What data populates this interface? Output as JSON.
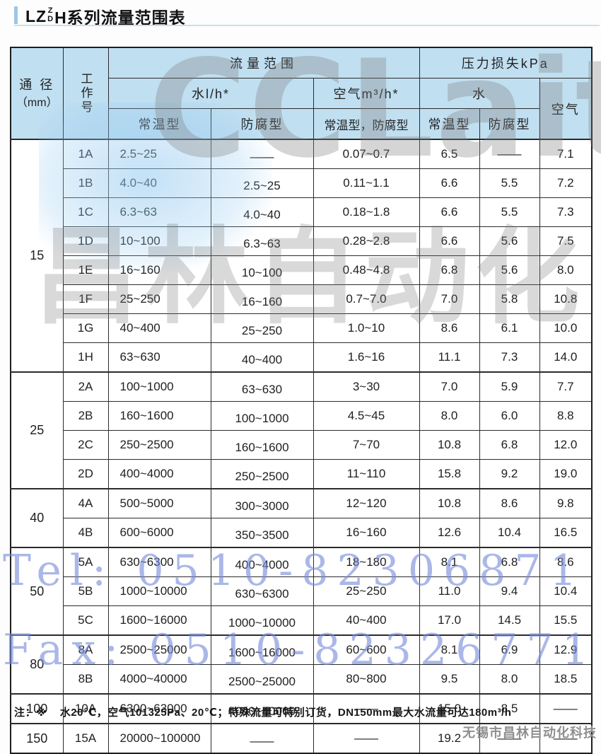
{
  "title": {
    "prefix": "LZ",
    "stack_top": "Z",
    "stack_bottom": "D",
    "suffix": "H系列流量范围表"
  },
  "header": {
    "diameter_line1": "通 径",
    "diameter_line2": "（mm）",
    "work_no": "工作号",
    "flow_range": "流量范围",
    "pressure_loss": "压力损失kPa",
    "water_unit": "水l/h*",
    "air_unit": "空气m³/h*",
    "water": "水",
    "air": "空气",
    "type_normal": "常温型",
    "type_anti": "防腐型",
    "type_both": "常温型，防腐型"
  },
  "groups": [
    {
      "diameter": "15",
      "rows": [
        {
          "code": "1A",
          "wn": "2.5~25",
          "wa": "——",
          "af": "0.07~0.7",
          "pwn": "6.5",
          "pwa": "——",
          "pa": "7.1"
        },
        {
          "code": "1B",
          "wn": "4.0~40",
          "wa": "2.5~25",
          "af": "0.11~1.1",
          "pwn": "6.6",
          "pwa": "5.5",
          "pa": "7.2"
        },
        {
          "code": "1C",
          "wn": "6.3~63",
          "wa": "4.0~40",
          "af": "0.18~1.8",
          "pwn": "6.6",
          "pwa": "5.5",
          "pa": "7.3"
        },
        {
          "code": "1D",
          "wn": "10~100",
          "wa": "6.3~63",
          "af": "0.28~2.8",
          "pwn": "6.6",
          "pwa": "5.6",
          "pa": "7.5"
        },
        {
          "code": "1E",
          "wn": "16~160",
          "wa": "10~100",
          "af": "0.48~4.8",
          "pwn": "6.8",
          "pwa": "5.6",
          "pa": "8.0"
        },
        {
          "code": "1F",
          "wn": "25~250",
          "wa": "16~160",
          "af": "0.7~7.0",
          "pwn": "7.0",
          "pwa": "5.8",
          "pa": "10.8"
        },
        {
          "code": "1G",
          "wn": "40~400",
          "wa": "25~250",
          "af": "1.0~10",
          "pwn": "8.6",
          "pwa": "6.1",
          "pa": "10.0"
        },
        {
          "code": "1H",
          "wn": "63~630",
          "wa": "40~400",
          "af": "1.6~16",
          "pwn": "11.1",
          "pwa": "7.3",
          "pa": "14.0"
        }
      ]
    },
    {
      "diameter": "25",
      "rows": [
        {
          "code": "2A",
          "wn": "100~1000",
          "wa": "63~630",
          "af": "3~30",
          "pwn": "7.0",
          "pwa": "5.9",
          "pa": "7.7"
        },
        {
          "code": "2B",
          "wn": "160~1600",
          "wa": "100~1000",
          "af": "4.5~45",
          "pwn": "8.0",
          "pwa": "6.0",
          "pa": "8.8"
        },
        {
          "code": "2C",
          "wn": "250~2500",
          "wa": "160~1600",
          "af": "7~70",
          "pwn": "10.8",
          "pwa": "6.8",
          "pa": "12.0"
        },
        {
          "code": "2D",
          "wn": "400~4000",
          "wa": "250~2500",
          "af": "11~110",
          "pwn": "15.8",
          "pwa": "9.2",
          "pa": "19.0"
        }
      ]
    },
    {
      "diameter": "40",
      "rows": [
        {
          "code": "4A",
          "wn": "500~5000",
          "wa": "300~3000",
          "af": "12~120",
          "pwn": "10.8",
          "pwa": "8.6",
          "pa": "9.8"
        },
        {
          "code": "4B",
          "wn": "600~6000",
          "wa": "350~3500",
          "af": "16~160",
          "pwn": "12.6",
          "pwa": "10.4",
          "pa": "16.5"
        }
      ]
    },
    {
      "diameter": "50",
      "rows": [
        {
          "code": "5A",
          "wn": "630~6300",
          "wa": "400~4000",
          "af": "18~180",
          "pwn": "8.1",
          "pwa": "6.8",
          "pa": "8.6"
        },
        {
          "code": "5B",
          "wn": "1000~10000",
          "wa": "630~6300",
          "af": "25~250",
          "pwn": "11.0",
          "pwa": "9.4",
          "pa": "10.4"
        },
        {
          "code": "5C",
          "wn": "1600~16000",
          "wa": "1000~10000",
          "af": "40~400",
          "pwn": "17.0",
          "pwa": "14.5",
          "pa": "15.5"
        }
      ]
    },
    {
      "diameter": "80",
      "rows": [
        {
          "code": "8A",
          "wn": "2500~25000",
          "wa": "1600~16000",
          "af": "60~600",
          "pwn": "8.1",
          "pwa": "6.9",
          "pa": "12.9"
        },
        {
          "code": "8B",
          "wn": "4000~40000",
          "wa": "2500~25000",
          "af": "80~800",
          "pwn": "9.5",
          "pwa": "8.0",
          "pa": "18.5"
        }
      ]
    },
    {
      "diameter": "100",
      "rows": [
        {
          "code": "10A",
          "wn": "6300~63000",
          "wa": "4000~40000",
          "af": "——",
          "pwn": "15.0",
          "pwa": "8.5",
          "pa": "——"
        }
      ]
    },
    {
      "diameter": "150",
      "rows": [
        {
          "code": "15A",
          "wn": "20000~100000",
          "wa": "——",
          "af": "——",
          "pwn": "19.2",
          "pwa": "——",
          "pa": "——"
        }
      ]
    }
  ],
  "watermarks": {
    "logo_en": "CCLait",
    "logo_cn": "昌林自动化",
    "tel": "Tel: 0510-82306871",
    "fax": "Fax: 0510-82326771"
  },
  "note": {
    "prefix": "注：※",
    "text": "水20℃，空气101325Pa、20℃；特殊流量可特别订货，DN150mm最大水流量可达180m³/h"
  },
  "footer_brand": "无锡市昌林自动化科技"
}
